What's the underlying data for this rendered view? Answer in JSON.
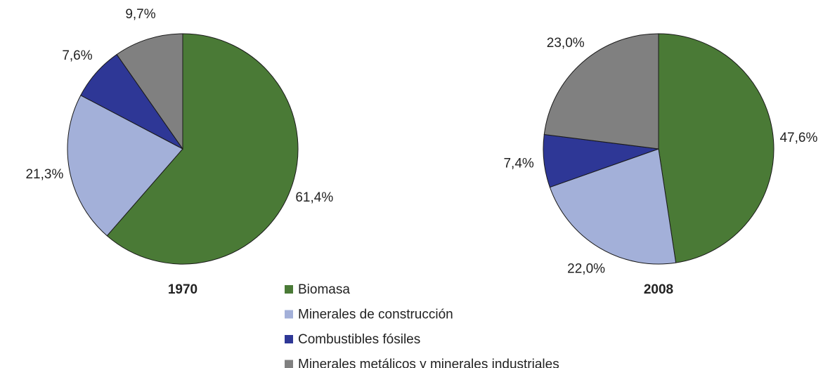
{
  "chart_data": [
    {
      "type": "pie",
      "title": "1970",
      "values": [
        61.4,
        21.3,
        7.6,
        9.7
      ],
      "value_labels": [
        "61,4%",
        "21,3%",
        "7,6%",
        "9,7%"
      ]
    },
    {
      "type": "pie",
      "title": "2008",
      "values": [
        47.6,
        22.0,
        7.4,
        23.0
      ],
      "value_labels": [
        "47,6%",
        "22,0%",
        "7,4%",
        "23,0%"
      ]
    }
  ],
  "legend": [
    {
      "name": "Biomasa",
      "color": "#4a7a36"
    },
    {
      "name": "Minerales de construcción",
      "color": "#a3b0d9"
    },
    {
      "name": "Combustibles fósiles",
      "color": "#2e3796"
    },
    {
      "name": "Minerales metálicos y minerales industriales",
      "color": "#808080"
    }
  ]
}
